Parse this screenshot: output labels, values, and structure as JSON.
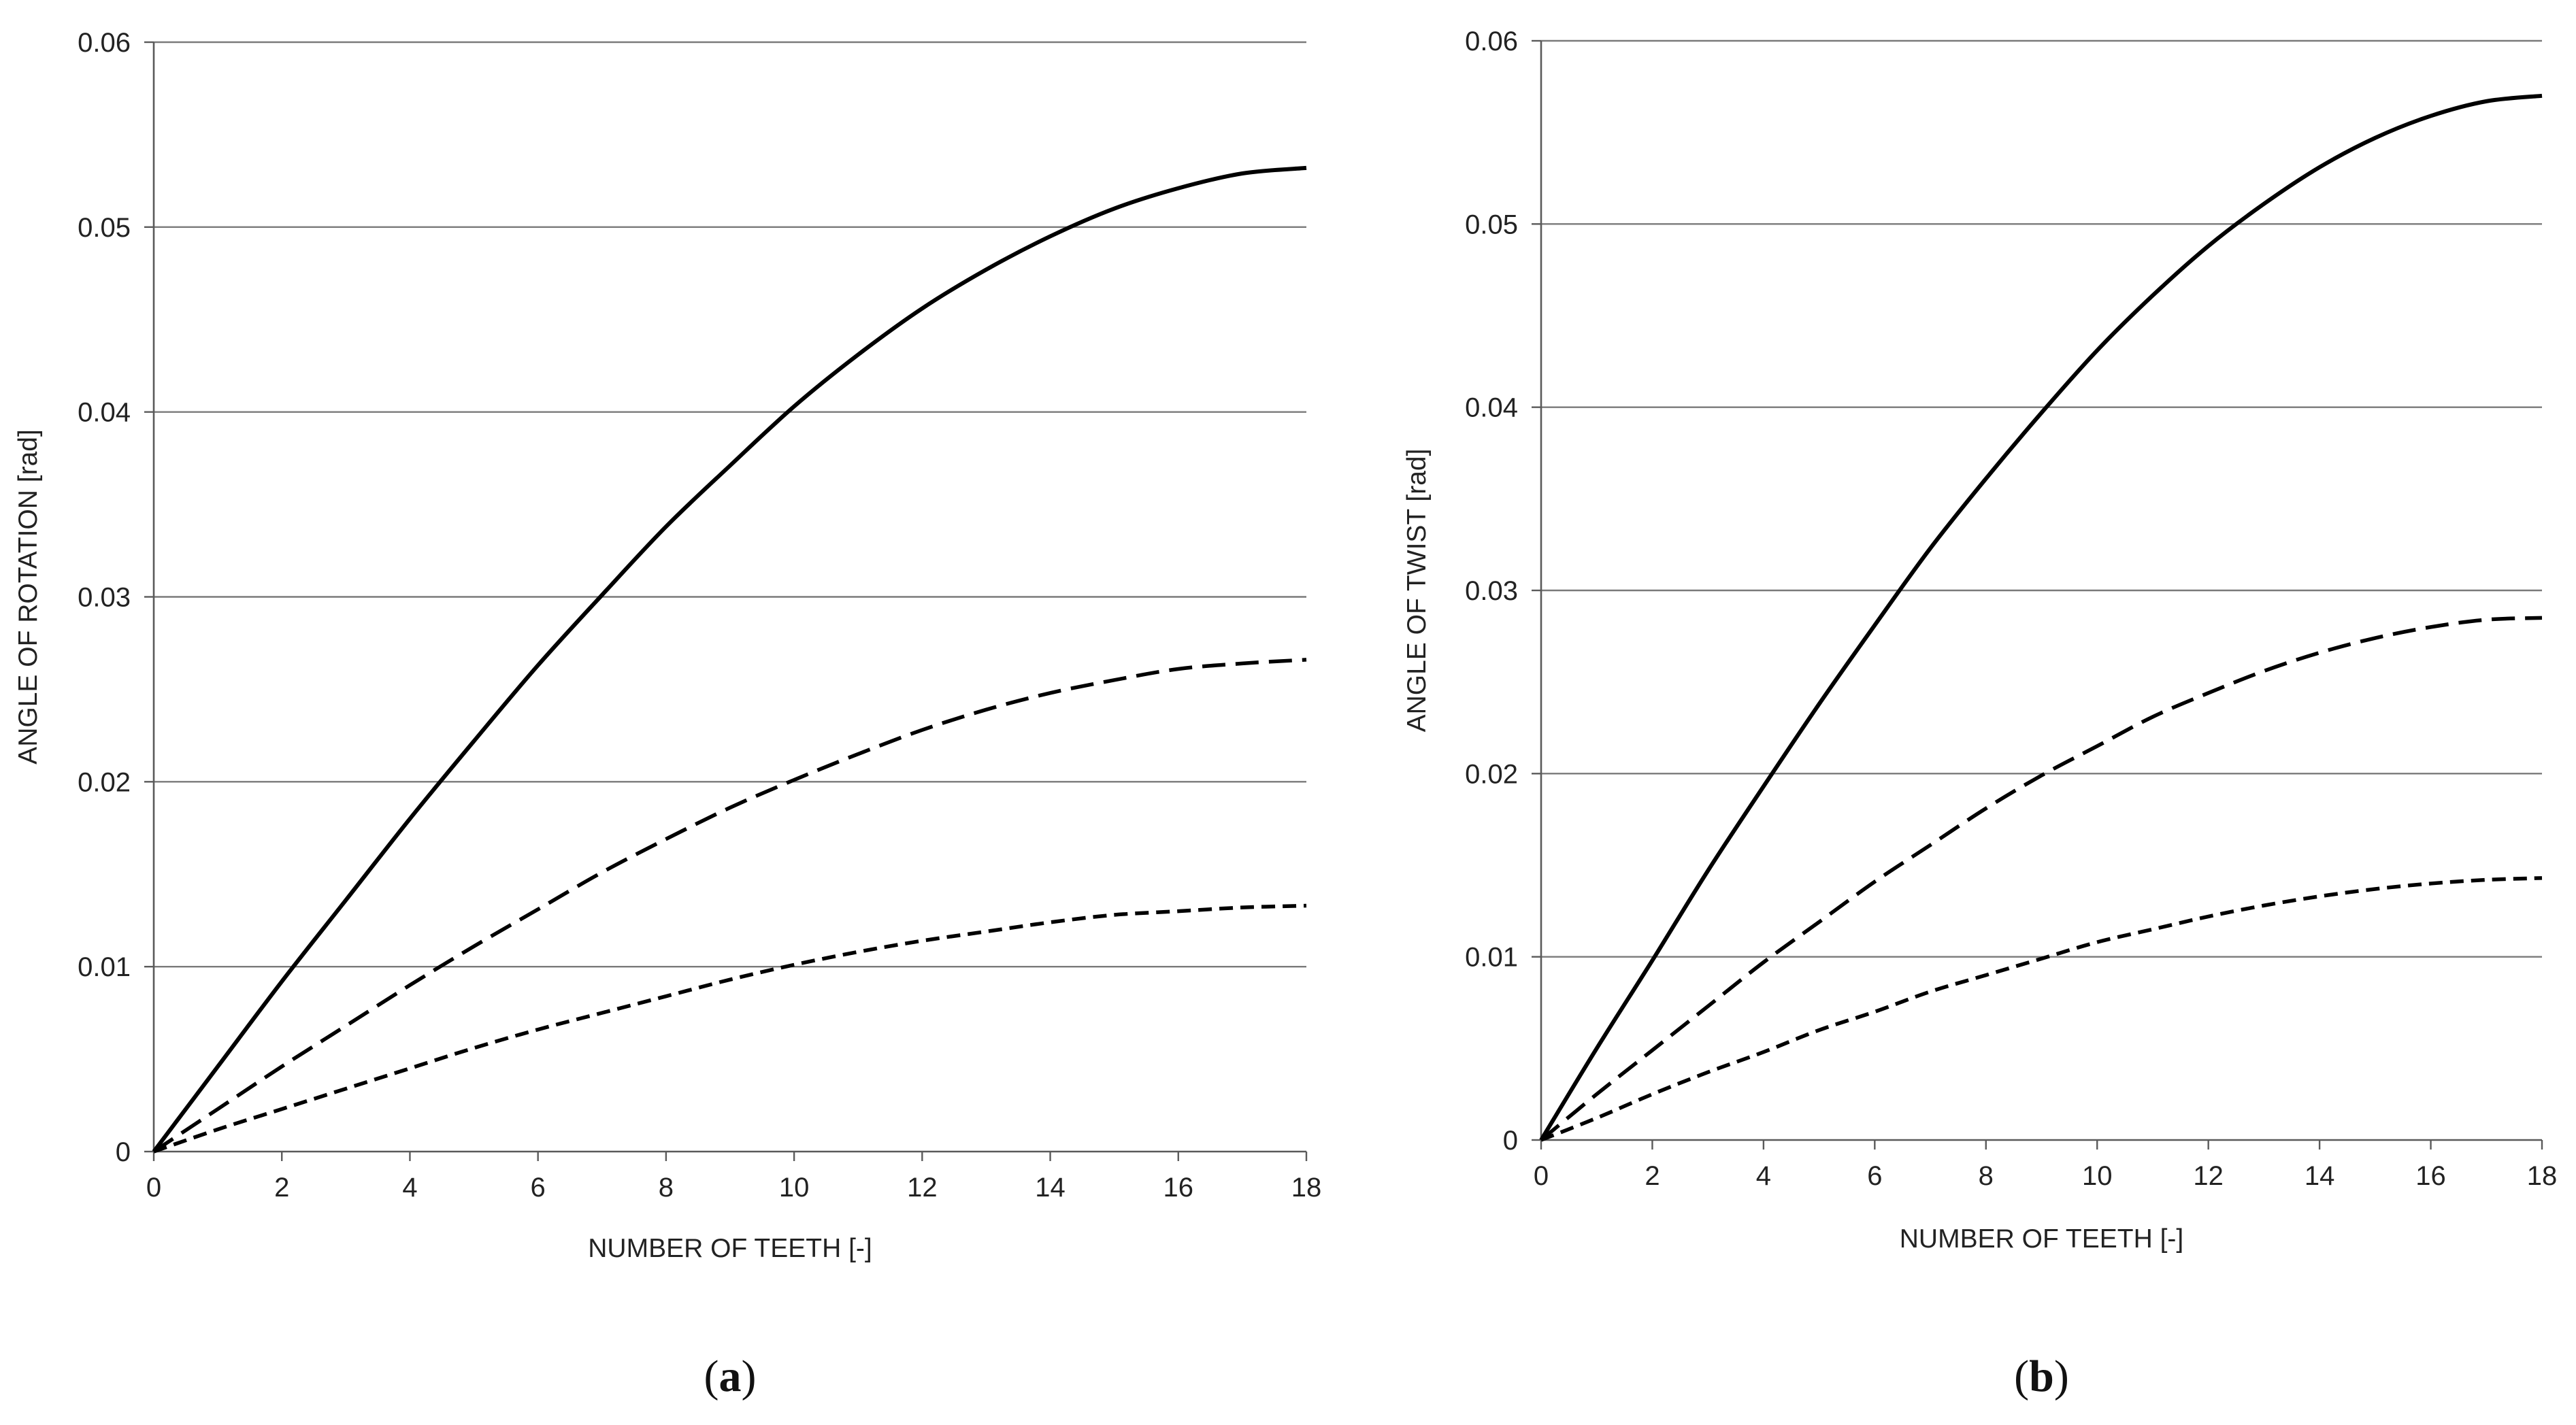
{
  "chart_data": [
    {
      "type": "line",
      "panel_label": "a",
      "title": "",
      "xlabel": "NUMBER OF TEETH [-]",
      "ylabel": "ANGLE OF ROTATION [rad]",
      "xlim": [
        0,
        18
      ],
      "ylim": [
        0,
        0.06
      ],
      "grid": true,
      "x_ticks": [
        0,
        2,
        4,
        6,
        8,
        10,
        12,
        14,
        16,
        18
      ],
      "x_tick_labels": [
        "0",
        "2",
        "4",
        "6",
        "8",
        "10",
        "12",
        "14",
        "16",
        "18"
      ],
      "y_ticks": [
        0,
        0.01,
        0.02,
        0.03,
        0.04,
        0.05,
        0.06
      ],
      "y_tick_labels": [
        "0",
        "0.01",
        "0.02",
        "0.03",
        "0.04",
        "0.05",
        "0.06"
      ],
      "x": [
        0,
        1,
        2,
        3,
        4,
        5,
        6,
        7,
        8,
        9,
        10,
        11,
        12,
        13,
        14,
        15,
        16,
        17,
        18
      ],
      "series": [
        {
          "name": "solid",
          "style": "solid",
          "values": [
            0,
            0.0046,
            0.0092,
            0.0136,
            0.018,
            0.0222,
            0.0263,
            0.0301,
            0.0338,
            0.0371,
            0.0403,
            0.0431,
            0.0456,
            0.0477,
            0.0495,
            0.051,
            0.0521,
            0.0529,
            0.0532
          ]
        },
        {
          "name": "dashed",
          "style": "dashed",
          "values": [
            0,
            0.0023,
            0.0046,
            0.0068,
            0.009,
            0.0111,
            0.0131,
            0.0151,
            0.0169,
            0.0186,
            0.0201,
            0.0215,
            0.0228,
            0.0239,
            0.0248,
            0.0255,
            0.0261,
            0.0264,
            0.0266
          ]
        },
        {
          "name": "dotted",
          "style": "short-dashed",
          "values": [
            0,
            0.0012,
            0.0023,
            0.0034,
            0.0045,
            0.0056,
            0.0066,
            0.0075,
            0.0084,
            0.0093,
            0.0101,
            0.0108,
            0.0114,
            0.0119,
            0.0124,
            0.0128,
            0.013,
            0.0132,
            0.0133
          ]
        }
      ]
    },
    {
      "type": "line",
      "panel_label": "b",
      "title": "",
      "xlabel": "NUMBER OF TEETH [-]",
      "ylabel": "ANGLE OF TWIST [rad]",
      "xlim": [
        0,
        18
      ],
      "ylim": [
        0,
        0.06
      ],
      "grid": true,
      "x_ticks": [
        0,
        2,
        4,
        6,
        8,
        10,
        12,
        14,
        16,
        18
      ],
      "x_tick_labels": [
        "0",
        "2",
        "4",
        "6",
        "8",
        "10",
        "12",
        "14",
        "16",
        "18"
      ],
      "y_ticks": [
        0,
        0.01,
        0.02,
        0.03,
        0.04,
        0.05,
        0.06
      ],
      "y_tick_labels": [
        "0",
        "0.01",
        "0.02",
        "0.03",
        "0.04",
        "0.05",
        "0.06"
      ],
      "x": [
        0,
        1,
        2,
        3,
        4,
        5,
        6,
        7,
        8,
        9,
        10,
        11,
        12,
        13,
        14,
        15,
        16,
        17,
        18
      ],
      "series": [
        {
          "name": "solid",
          "style": "solid",
          "values": [
            0,
            0.005,
            0.0098,
            0.0147,
            0.0193,
            0.0238,
            0.0281,
            0.0323,
            0.0361,
            0.0397,
            0.0431,
            0.0461,
            0.0488,
            0.0511,
            0.0531,
            0.0547,
            0.0559,
            0.0567,
            0.057
          ]
        },
        {
          "name": "dashed",
          "style": "dashed",
          "values": [
            0,
            0.0025,
            0.0049,
            0.0073,
            0.0097,
            0.0119,
            0.0141,
            0.0161,
            0.0181,
            0.0199,
            0.0215,
            0.0231,
            0.0244,
            0.0256,
            0.0266,
            0.0274,
            0.028,
            0.0284,
            0.0285
          ]
        },
        {
          "name": "dotted",
          "style": "short-dashed",
          "values": [
            0,
            0.0012,
            0.0025,
            0.0037,
            0.0048,
            0.006,
            0.007,
            0.0081,
            0.009,
            0.0099,
            0.0108,
            0.0115,
            0.0122,
            0.0128,
            0.0133,
            0.0137,
            0.014,
            0.0142,
            0.0143
          ]
        }
      ]
    }
  ]
}
